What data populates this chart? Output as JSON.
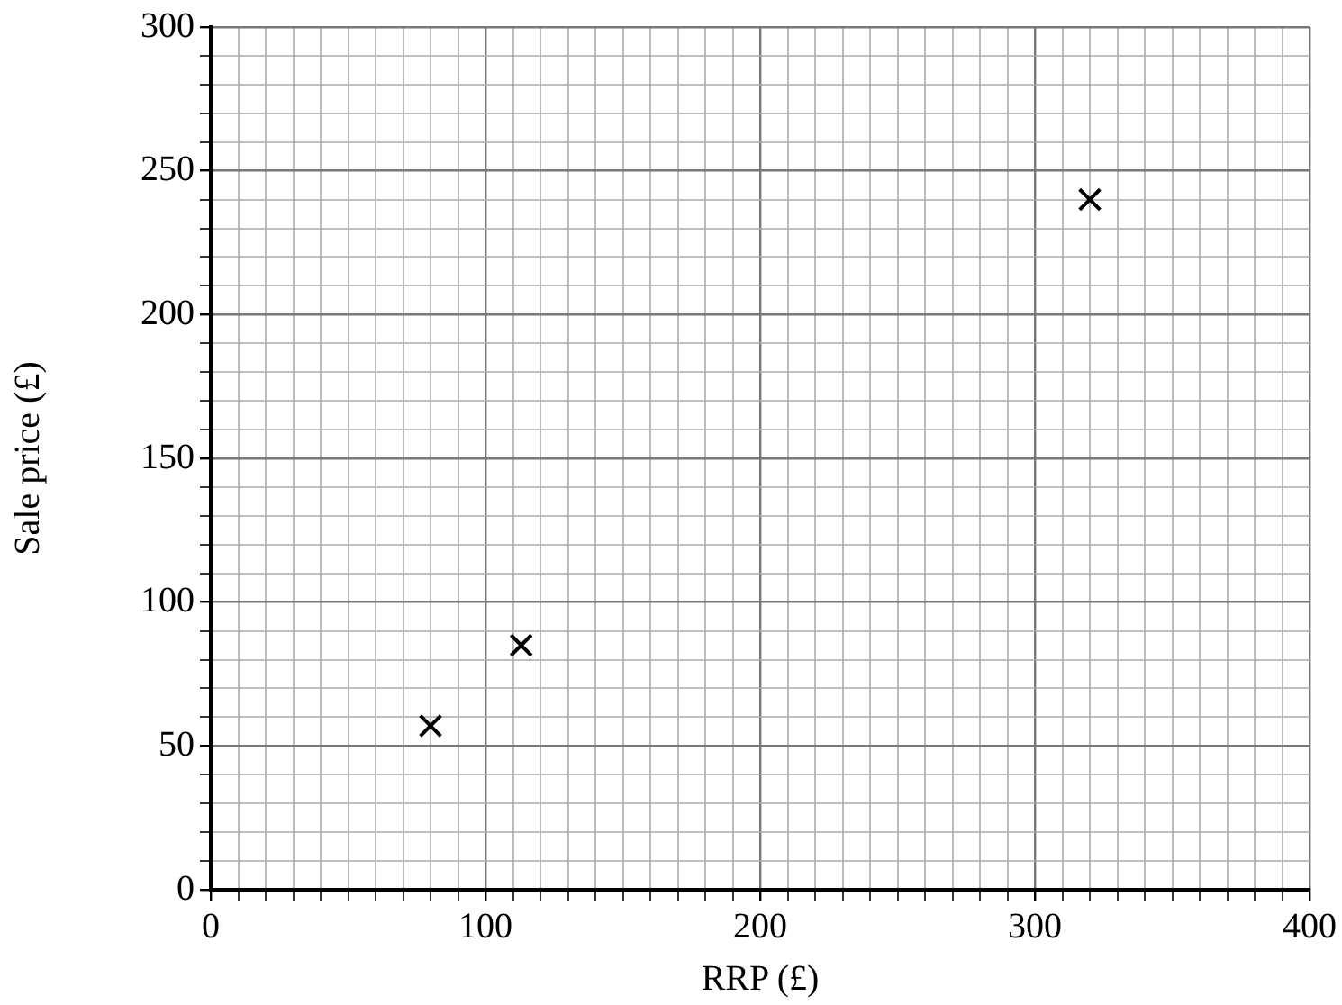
{
  "chart_data": {
    "type": "scatter",
    "xlabel": "RRP (£)",
    "ylabel": "Sale price (£)",
    "x": [
      80,
      113,
      320
    ],
    "series": [
      {
        "color": "#000000",
        "values": [
          57,
          85,
          240
        ]
      }
    ],
    "marker": "cross",
    "grid": true,
    "legend": false,
    "xlim": [
      0,
      400
    ],
    "ylim": [
      0,
      300
    ],
    "xticks": [
      0,
      {
        "value": 10,
        "label": null
      },
      {
        "value": 20,
        "label": null
      },
      {
        "value": 30,
        "label": null
      },
      {
        "value": 40,
        "label": null
      },
      {
        "value": 50,
        "label": null
      },
      {
        "value": 60,
        "label": null
      },
      {
        "value": 70,
        "label": null
      },
      {
        "value": 80,
        "label": null
      },
      {
        "value": 90,
        "label": null
      },
      100,
      {
        "value": 110,
        "label": null
      },
      {
        "value": 120,
        "label": null
      },
      {
        "value": 130,
        "label": null
      },
      {
        "value": 140,
        "label": null
      },
      {
        "value": 150,
        "label": null
      },
      {
        "value": 160,
        "label": null
      },
      {
        "value": 170,
        "label": null
      },
      {
        "value": 180,
        "label": null
      },
      {
        "value": 190,
        "label": null
      },
      200,
      {
        "value": 210,
        "label": null
      },
      {
        "value": 220,
        "label": null
      },
      {
        "value": 230,
        "label": null
      },
      {
        "value": 240,
        "label": null
      },
      {
        "value": 250,
        "label": null
      },
      {
        "value": 260,
        "label": null
      },
      {
        "value": 270,
        "label": null
      },
      {
        "value": 280,
        "label": null
      },
      {
        "value": 290,
        "label": null
      },
      300,
      {
        "value": 310,
        "label": null
      },
      {
        "value": 320,
        "label": null
      },
      {
        "value": 330,
        "label": null
      },
      {
        "value": 340,
        "label": null
      },
      {
        "value": 350,
        "label": null
      },
      {
        "value": 360,
        "label": null
      },
      {
        "value": 370,
        "label": null
      },
      {
        "value": 380,
        "label": null
      },
      {
        "value": 390,
        "label": null
      },
      400
    ],
    "yticks": [
      0,
      {
        "value": 10,
        "label": null
      },
      {
        "value": 20,
        "label": null
      },
      {
        "value": 30,
        "label": null
      },
      {
        "value": 40,
        "label": null
      },
      50,
      {
        "value": 60,
        "label": null
      },
      {
        "value": 70,
        "label": null
      },
      {
        "value": 80,
        "label": null
      },
      {
        "value": 90,
        "label": null
      },
      100,
      {
        "value": 110,
        "label": null
      },
      {
        "value": 120,
        "label": null
      },
      {
        "value": 130,
        "label": null
      },
      {
        "value": 140,
        "label": null
      },
      150,
      {
        "value": 160,
        "label": null
      },
      {
        "value": 170,
        "label": null
      },
      {
        "value": 180,
        "label": null
      },
      {
        "value": 190,
        "label": null
      },
      200,
      {
        "value": 210,
        "label": null
      },
      {
        "value": 220,
        "label": null
      },
      {
        "value": 230,
        "label": null
      },
      {
        "value": 240,
        "label": null
      },
      250,
      {
        "value": 260,
        "label": null
      },
      {
        "value": 270,
        "label": null
      },
      {
        "value": 280,
        "label": null
      },
      {
        "value": 290,
        "label": null
      },
      300
    ]
  }
}
